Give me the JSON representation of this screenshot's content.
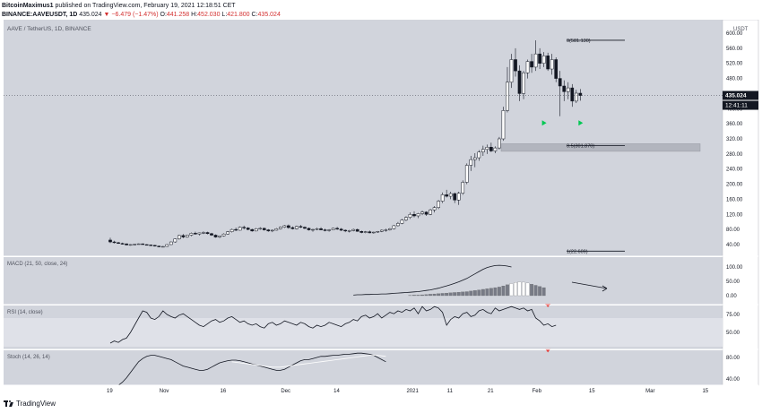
{
  "header": {
    "author": "BitcoinMaximus1",
    "published": "published on TradingView.com, February 19, 2021 12:18:51 CET",
    "symbol_line": "BINANCE:AAVEUSDT, 1D",
    "last": "435.024",
    "change_arrow": "▼",
    "change": "−6.479 (−1.47%)",
    "o_label": "O:",
    "o": "441.258",
    "h_label": "H:",
    "h": "452.030",
    "l_label": "L:",
    "l": "421.800",
    "c_label": "C:",
    "c": "435.024"
  },
  "chart_title": "AAVE / TetherUS, 1D, BINANCE",
  "price_unit": "USDT",
  "price_badge": "435.024",
  "countdown_badge": "12:41:11",
  "footer": {
    "brand": "TradingView"
  },
  "colors": {
    "background": "#d1d4dc",
    "candle_up": "#ffffff",
    "candle_down": "#131722",
    "signal_green": "#00c853",
    "signal_red": "#e53935",
    "zone_fill": "#b2b5be",
    "rsi_band": "#dfe1e8"
  },
  "chart_data": [
    {
      "type": "candlestick",
      "title": "AAVE / TetherUS, 1D, BINANCE",
      "y_ticks": [
        40,
        80,
        120,
        160,
        200,
        240,
        280,
        320,
        360,
        400,
        440,
        480,
        520,
        560,
        600
      ],
      "x_tick_labels": [
        {
          "label": "19",
          "day": 0
        },
        {
          "label": "Nov",
          "day": 13
        },
        {
          "label": "16",
          "day": 28
        },
        {
          "label": "Dec",
          "day": 43
        },
        {
          "label": "14",
          "day": 56
        },
        {
          "label": "2021",
          "day": 74
        },
        {
          "label": "11",
          "day": 84
        },
        {
          "label": "21",
          "day": 94
        },
        {
          "label": "Feb",
          "day": 105
        },
        {
          "label": "15",
          "day": 119
        },
        {
          "label": "Mar",
          "day": 133
        },
        {
          "label": "15",
          "day": 147
        }
      ],
      "fib_levels": [
        {
          "label": "0(581.130)",
          "value": 581.13
        },
        {
          "label": "0.5(301.870)",
          "value": 301.87
        },
        {
          "label": "1(22.609)",
          "value": 22.609
        }
      ],
      "zone": [
        287,
        307
      ],
      "signals": [
        {
          "day": 107,
          "value": 362
        },
        {
          "day": 116,
          "value": 362
        }
      ],
      "ohlc": [
        [
          0,
          52,
          58,
          44,
          47
        ],
        [
          1,
          47,
          50,
          43,
          45
        ],
        [
          2,
          45,
          47,
          42,
          43
        ],
        [
          3,
          43,
          45,
          40,
          42
        ],
        [
          4,
          42,
          43,
          38,
          39
        ],
        [
          5,
          39,
          41,
          37,
          40
        ],
        [
          6,
          40,
          42,
          38,
          41
        ],
        [
          7,
          41,
          43,
          40,
          42
        ],
        [
          8,
          42,
          43,
          40,
          40
        ],
        [
          9,
          40,
          41,
          38,
          39
        ],
        [
          10,
          39,
          40,
          37,
          38
        ],
        [
          11,
          38,
          39,
          35,
          36
        ],
        [
          12,
          36,
          37,
          33,
          34
        ],
        [
          13,
          34,
          36,
          33,
          35
        ],
        [
          14,
          35,
          41,
          34,
          40
        ],
        [
          15,
          40,
          48,
          39,
          47
        ],
        [
          16,
          47,
          56,
          45,
          55
        ],
        [
          17,
          55,
          66,
          53,
          64
        ],
        [
          18,
          64,
          68,
          57,
          60
        ],
        [
          19,
          60,
          66,
          58,
          65
        ],
        [
          20,
          65,
          72,
          62,
          70
        ],
        [
          21,
          70,
          74,
          66,
          68
        ],
        [
          22,
          68,
          72,
          64,
          71
        ],
        [
          23,
          71,
          75,
          68,
          72
        ],
        [
          24,
          72,
          74,
          67,
          69
        ],
        [
          25,
          69,
          71,
          63,
          65
        ],
        [
          26,
          65,
          67,
          58,
          60
        ],
        [
          27,
          60,
          64,
          57,
          63
        ],
        [
          28,
          63,
          70,
          61,
          68
        ],
        [
          29,
          68,
          76,
          66,
          74
        ],
        [
          30,
          74,
          82,
          72,
          80
        ],
        [
          31,
          80,
          85,
          76,
          78
        ],
        [
          32,
          78,
          88,
          77,
          86
        ],
        [
          33,
          86,
          90,
          80,
          84
        ],
        [
          34,
          84,
          86,
          78,
          80
        ],
        [
          35,
          80,
          82,
          74,
          76
        ],
        [
          36,
          76,
          84,
          75,
          82
        ],
        [
          37,
          82,
          86,
          79,
          83
        ],
        [
          38,
          83,
          85,
          77,
          79
        ],
        [
          39,
          79,
          81,
          74,
          76
        ],
        [
          40,
          76,
          80,
          73,
          78
        ],
        [
          41,
          78,
          84,
          77,
          82
        ],
        [
          42,
          82,
          88,
          80,
          86
        ],
        [
          43,
          86,
          92,
          84,
          90
        ],
        [
          44,
          90,
          93,
          82,
          85
        ],
        [
          45,
          85,
          88,
          80,
          82
        ],
        [
          46,
          82,
          90,
          80,
          88
        ],
        [
          47,
          88,
          92,
          84,
          86
        ],
        [
          48,
          86,
          88,
          81,
          83
        ],
        [
          49,
          83,
          85,
          77,
          79
        ],
        [
          50,
          79,
          82,
          74,
          80
        ],
        [
          51,
          80,
          85,
          78,
          82
        ],
        [
          52,
          82,
          86,
          78,
          79
        ],
        [
          53,
          79,
          82,
          75,
          77
        ],
        [
          54,
          77,
          81,
          74,
          79
        ],
        [
          55,
          79,
          85,
          78,
          83
        ],
        [
          56,
          83,
          87,
          79,
          81
        ],
        [
          57,
          81,
          84,
          76,
          78
        ],
        [
          58,
          78,
          80,
          73,
          76
        ],
        [
          59,
          76,
          79,
          72,
          77
        ],
        [
          60,
          77,
          82,
          75,
          80
        ],
        [
          61,
          80,
          82,
          74,
          75
        ],
        [
          62,
          75,
          77,
          70,
          72
        ],
        [
          63,
          72,
          76,
          70,
          74
        ],
        [
          64,
          74,
          77,
          70,
          71
        ],
        [
          65,
          71,
          74,
          69,
          73
        ],
        [
          66,
          73,
          76,
          71,
          75
        ],
        [
          67,
          75,
          80,
          73,
          78
        ],
        [
          68,
          78,
          82,
          74,
          79
        ],
        [
          69,
          79,
          84,
          77,
          82
        ],
        [
          70,
          82,
          92,
          80,
          90
        ],
        [
          71,
          90,
          100,
          88,
          96
        ],
        [
          72,
          96,
          108,
          94,
          105
        ],
        [
          73,
          105,
          115,
          102,
          112
        ],
        [
          74,
          112,
          125,
          108,
          120
        ],
        [
          75,
          120,
          128,
          112,
          116
        ],
        [
          76,
          116,
          124,
          110,
          122
        ],
        [
          77,
          122,
          130,
          118,
          126
        ],
        [
          78,
          126,
          128,
          116,
          120
        ],
        [
          79,
          120,
          135,
          118,
          132
        ],
        [
          80,
          132,
          142,
          125,
          138
        ],
        [
          81,
          138,
          158,
          134,
          155
        ],
        [
          82,
          155,
          178,
          150,
          172
        ],
        [
          83,
          172,
          185,
          165,
          168
        ],
        [
          84,
          168,
          180,
          160,
          175
        ],
        [
          85,
          175,
          178,
          150,
          158
        ],
        [
          86,
          158,
          180,
          145,
          176
        ],
        [
          87,
          176,
          210,
          172,
          205
        ],
        [
          88,
          205,
          255,
          200,
          250
        ],
        [
          89,
          250,
          275,
          235,
          265
        ],
        [
          90,
          265,
          282,
          245,
          270
        ],
        [
          91,
          270,
          290,
          262,
          285
        ],
        [
          92,
          285,
          302,
          275,
          292
        ],
        [
          93,
          292,
          305,
          280,
          298
        ],
        [
          94,
          298,
          310,
          285,
          288
        ],
        [
          95,
          288,
          300,
          282,
          296
        ],
        [
          96,
          296,
          325,
          292,
          320
        ],
        [
          97,
          320,
          405,
          315,
          395
        ],
        [
          98,
          395,
          510,
          390,
          470
        ],
        [
          99,
          470,
          545,
          455,
          530
        ],
        [
          100,
          530,
          560,
          485,
          500
        ],
        [
          101,
          500,
          515,
          420,
          440
        ],
        [
          102,
          440,
          500,
          425,
          495
        ],
        [
          103,
          495,
          530,
          480,
          525
        ],
        [
          104,
          525,
          545,
          495,
          510
        ],
        [
          105,
          510,
          581,
          500,
          545
        ],
        [
          106,
          545,
          560,
          505,
          520
        ],
        [
          107,
          520,
          550,
          510,
          540
        ],
        [
          108,
          540,
          548,
          500,
          505
        ],
        [
          109,
          505,
          545,
          490,
          530
        ],
        [
          110,
          530,
          536,
          470,
          480
        ],
        [
          111,
          480,
          500,
          380,
          460
        ],
        [
          112,
          460,
          475,
          420,
          445
        ],
        [
          113,
          445,
          470,
          425,
          455
        ],
        [
          114,
          455,
          465,
          405,
          420
        ],
        [
          115,
          420,
          450,
          415,
          441
        ],
        [
          116,
          441,
          452,
          421,
          435
        ]
      ]
    },
    {
      "type": "line",
      "title": "MACD (21, 50, close, 24)",
      "y_ticks": [
        0,
        50,
        100
      ],
      "series": [
        {
          "kind": "line",
          "x_start": 60,
          "values": [
            2,
            3,
            3,
            4,
            4,
            5,
            5,
            6,
            6,
            7,
            8,
            9,
            10,
            11,
            12,
            13,
            14,
            16,
            18,
            20,
            23,
            26,
            30,
            34,
            38,
            43,
            48,
            54,
            60,
            68,
            76,
            84,
            92,
            98,
            102,
            105,
            106,
            105,
            103,
            100
          ]
        },
        {
          "kind": "histogram",
          "x_start": 74,
          "values": [
            1,
            2,
            2,
            3,
            4,
            5,
            6,
            7,
            8,
            9,
            10,
            11,
            12,
            13,
            14,
            16,
            18,
            20,
            22,
            24,
            26,
            28,
            30,
            34,
            38,
            42,
            46,
            48,
            47,
            44,
            40,
            36,
            32,
            28
          ]
        }
      ]
    },
    {
      "type": "line",
      "title": "RSI (14, close)",
      "y_ticks": [
        50,
        75
      ],
      "band": [
        30,
        70
      ],
      "series": [
        {
          "kind": "line",
          "x_start": 0,
          "values": [
            35,
            38,
            36,
            40,
            42,
            50,
            60,
            70,
            80,
            78,
            70,
            68,
            72,
            80,
            75,
            72,
            70,
            74,
            76,
            72,
            68,
            64,
            60,
            58,
            62,
            66,
            68,
            64,
            66,
            70,
            72,
            68,
            64,
            66,
            62,
            60,
            62,
            58,
            56,
            62,
            64,
            60,
            62,
            66,
            64,
            62,
            60,
            64,
            62,
            58,
            56,
            60,
            58,
            60,
            64,
            62,
            60,
            58,
            62,
            64,
            68,
            66,
            72,
            74,
            70,
            72,
            76,
            70,
            74,
            78,
            76,
            80,
            78,
            82,
            80,
            84,
            76,
            86,
            80,
            82,
            86,
            84,
            78,
            60,
            68,
            72,
            70,
            76,
            78,
            72,
            74,
            80,
            82,
            78,
            76,
            84,
            80,
            82,
            84,
            86,
            84,
            82,
            84,
            80,
            82,
            70,
            66,
            60,
            62,
            58,
            60
          ]
        }
      ]
    },
    {
      "type": "line",
      "title": "Stoch (14, 26, 14)",
      "y_ticks": [
        40,
        80
      ],
      "series": [
        {
          "kind": "k",
          "x_start": 0,
          "values": [
            20,
            24,
            28,
            34,
            42,
            52,
            62,
            72,
            78,
            82,
            84,
            84,
            82,
            80,
            78,
            76,
            72,
            68,
            64,
            62,
            60,
            58,
            56,
            56,
            58,
            62,
            66,
            70,
            72,
            74,
            75,
            75,
            74,
            72,
            70,
            68,
            66,
            64,
            62,
            60,
            58,
            56,
            56,
            58,
            62,
            66,
            70,
            74,
            76,
            76,
            78,
            80,
            82,
            82,
            83,
            84,
            84,
            85,
            86,
            86,
            87,
            88,
            88,
            87,
            86,
            84,
            80,
            76,
            72
          ]
        },
        {
          "kind": "d",
          "x_start": 30,
          "values": [
            72,
            71,
            70,
            69,
            68,
            67,
            66,
            65,
            64,
            63,
            62,
            62,
            62,
            63,
            64,
            65,
            66,
            67,
            68,
            69,
            70,
            71,
            72,
            73,
            74,
            75,
            76,
            77,
            78,
            79,
            80,
            81,
            82,
            83,
            84,
            84,
            84,
            83,
            82
          ]
        }
      ],
      "signals": [
        {
          "day": 108,
          "pane": "rsi",
          "value": 90
        },
        {
          "day": 108,
          "pane": "stoch",
          "value": 96
        }
      ]
    }
  ]
}
